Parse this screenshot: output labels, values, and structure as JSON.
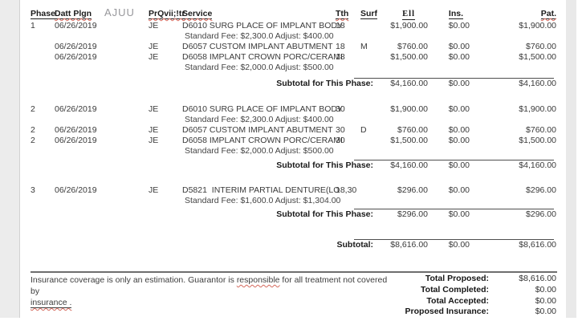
{
  "header": {
    "stray_label": "AJUU",
    "columns": {
      "phase": "Phase",
      "date": "Datt Plgn",
      "prov": "PrQvii;!tr",
      "service": "Service",
      "tth": "Tth",
      "surf": "Surf",
      "fee": "Ell",
      "ins": "Ins.",
      "pat": "Pat."
    }
  },
  "phases": [
    {
      "rows": [
        {
          "phase": "1",
          "date": "06/26/2019",
          "prov": "JE",
          "service": "D6010 SURG PLACE OF IMPLANT BODY",
          "tth": "18",
          "surf": "",
          "fee": "$1,900.00",
          "ins": "$0.00",
          "pat": "$1,900.00",
          "note": "Standard Fee: $2,300.0 Adjust: $400.00"
        },
        {
          "phase": "",
          "date": "06/26/2019",
          "prov": "JE",
          "service": "D6057 CUSTOM IMPLANT ABUTMENT",
          "tth": "18",
          "surf": "M",
          "fee": "$760.00",
          "ins": "$0.00",
          "pat": "$760.00",
          "note": ""
        },
        {
          "phase": "",
          "date": "06/26/2019",
          "prov": "JE",
          "service": "D6058 IMPLANT CROWN PORC/CERAMI",
          "tth": "18",
          "surf": "",
          "fee": "$1,500.00",
          "ins": "$0.00",
          "pat": "$1,500.00",
          "note": "Standard Fee: $2,000.0 Adjust: $500.00"
        }
      ],
      "subtotal": {
        "label": "Subtotal for This Phase:",
        "fee": "$4,160.00",
        "ins": "$0.00",
        "pat": "$4,160.00"
      }
    },
    {
      "rows": [
        {
          "phase": "2",
          "date": "06/26/2019",
          "prov": "JE",
          "service": "D6010 SURG PLACE OF IMPLANT BODY",
          "tth": "30",
          "surf": "",
          "fee": "$1,900.00",
          "ins": "$0.00",
          "pat": "$1,900.00",
          "note": "Standard Fee: $2,300.0 Adjust: $400.00"
        },
        {
          "phase": "2",
          "date": "06/26/2019",
          "prov": "JE",
          "service": "D6057 CUSTOM IMPLANT ABUTMENT",
          "tth": "30",
          "surf": "D",
          "fee": "$760.00",
          "ins": "$0.00",
          "pat": "$760.00",
          "note": ""
        },
        {
          "phase": "2",
          "date": "06/26/2019",
          "prov": "JE",
          "service": "D6058 IMPLANT CROWN PORC/CERAMI",
          "tth": "30",
          "surf": "",
          "fee": "$1,500.00",
          "ins": "$0.00",
          "pat": "$1,500.00",
          "note": "Standard Fee: $2,000.0 Adjust: $500.00"
        }
      ],
      "subtotal": {
        "label": "Subtotal for This Phase:",
        "fee": "$4,160.00",
        "ins": "$0.00",
        "pat": "$4,160.00"
      }
    },
    {
      "rows": [
        {
          "phase": "3",
          "date": "06/26/2019",
          "prov": "JE",
          "service": "D5821  INTERIM PARTIAL DENTURE(LO",
          "tth": "18,30",
          "surf": "",
          "fee": "$296.00",
          "ins": "$0.00",
          "pat": "$296.00",
          "note": "Standard Fee: $1,600.0 Adjust: $1,304.00"
        }
      ],
      "subtotal": {
        "label": "Subtotal for This Phase:",
        "fee": "$296.00",
        "ins": "$0.00",
        "pat": "$296.00"
      }
    }
  ],
  "grand_subtotal": {
    "label": "Subtotal:",
    "fee": "$8,616.00",
    "ins": "$0.00",
    "pat": "$8,616.00"
  },
  "footer": {
    "disclaimer_prefix": "Insurance coverage is only an estimation. Guarantor is ",
    "disclaimer_flagged_word": "responsible",
    "disclaimer_suffix": " for all treatment not covered by",
    "disclaimer_link": "insurance .",
    "totals": [
      {
        "label": "Total Proposed:",
        "value": "$8,616.00"
      },
      {
        "label": "Total Completed:",
        "value": "$0.00"
      },
      {
        "label": "Total Accepted:",
        "value": "$0.00"
      },
      {
        "label": "Proposed Insurance:",
        "value": "$0.00"
      }
    ]
  }
}
